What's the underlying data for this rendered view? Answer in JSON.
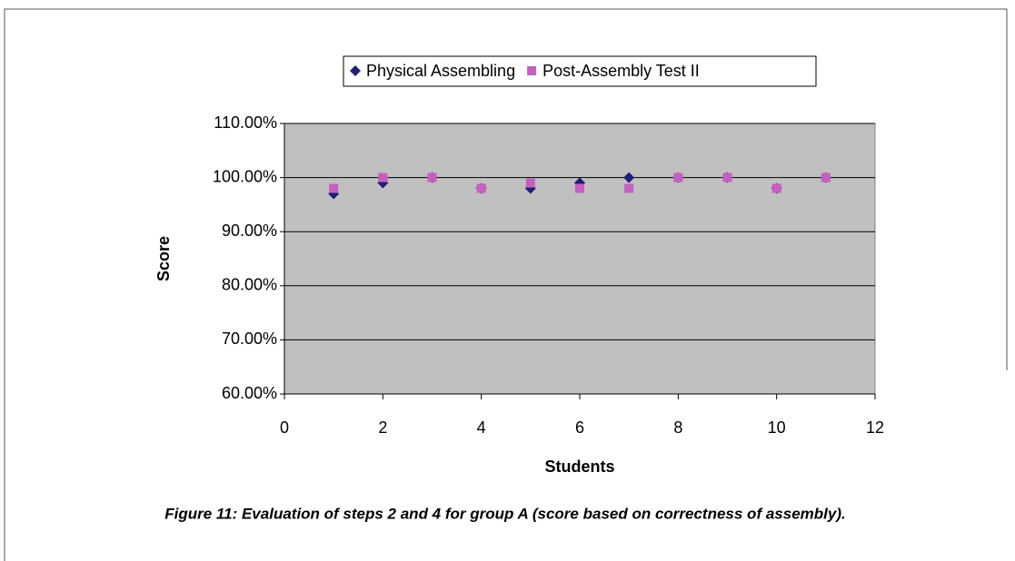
{
  "chart_data": {
    "type": "scatter",
    "x": [
      1,
      2,
      3,
      4,
      5,
      6,
      7,
      8,
      9,
      10,
      11
    ],
    "series": [
      {
        "name": "Physical Assembling",
        "color": "#1f1f7a",
        "marker": "diamond",
        "values": [
          97,
          99,
          100,
          98,
          98,
          99,
          100,
          100,
          100,
          98,
          100
        ]
      },
      {
        "name": "Post-Assembly Test II",
        "color": "#c65fc0",
        "marker": "square",
        "values": [
          98,
          100,
          100,
          98,
          99,
          98,
          98,
          100,
          100,
          98,
          100
        ]
      }
    ],
    "xlabel": "Students",
    "ylabel": "Score",
    "xlim": [
      0,
      12
    ],
    "xticks": [
      0,
      2,
      4,
      6,
      8,
      10,
      12
    ],
    "ylim": [
      60,
      110
    ],
    "yticks": [
      {
        "value": 60,
        "label": "60.00%"
      },
      {
        "value": 70,
        "label": "70.00%"
      },
      {
        "value": 80,
        "label": "80.00%"
      },
      {
        "value": 90,
        "label": "90.00%"
      },
      {
        "value": 100,
        "label": "100.00%"
      },
      {
        "value": 110,
        "label": "110.00%"
      }
    ],
    "grid": true,
    "legend": "top",
    "plot_background": "#c0c0c0"
  },
  "caption": "Figure 11: Evaluation of steps 2 and 4 for group A (score based on correctness of assembly)."
}
